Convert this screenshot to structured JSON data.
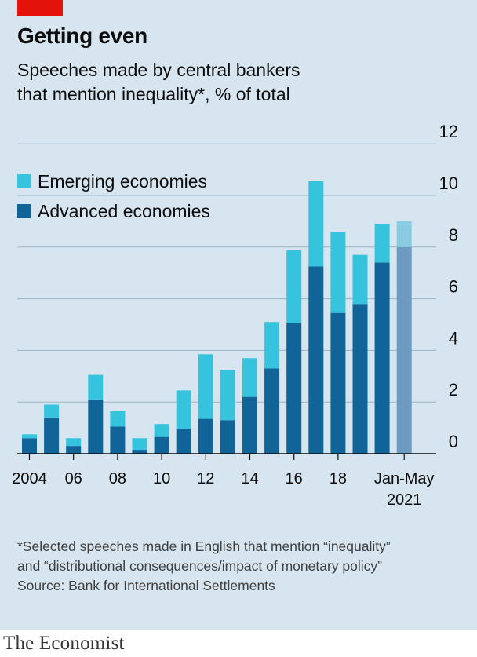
{
  "header": {
    "title": "Getting even",
    "subtitle_line1": "Speeches made by central bankers",
    "subtitle_line2": "that mention inequality*, % of total"
  },
  "colors": {
    "background": "#d6e5ef",
    "accent_red": "#e3120b",
    "emerging": "#36c3de",
    "advanced": "#106497",
    "partial_emerging": "#89cbe0",
    "partial_advanced": "#6d9ac0"
  },
  "chart_data": {
    "type": "bar",
    "stacked": true,
    "categories": [
      "2004",
      "2005",
      "2006",
      "2007",
      "2008",
      "2009",
      "2010",
      "2011",
      "2012",
      "2013",
      "2014",
      "2015",
      "2016",
      "2017",
      "2018",
      "2019",
      "2020",
      "Jan-May 2021"
    ],
    "series": [
      {
        "name": "Advanced economies",
        "values": [
          0.6,
          1.4,
          0.3,
          2.1,
          1.05,
          0.15,
          0.65,
          0.95,
          1.35,
          1.3,
          2.2,
          3.3,
          5.05,
          7.25,
          5.45,
          5.8,
          7.4,
          8.0
        ]
      },
      {
        "name": "Emerging economies",
        "values": [
          0.15,
          0.5,
          0.3,
          0.95,
          0.6,
          0.45,
          0.5,
          1.5,
          2.5,
          1.95,
          1.5,
          1.8,
          2.85,
          3.3,
          3.15,
          1.9,
          1.5,
          1.0
        ]
      }
    ],
    "x_tick_labels": [
      "2004",
      "06",
      "08",
      "10",
      "12",
      "14",
      "16",
      "18",
      "Jan-May",
      "2021"
    ],
    "y_ticks": [
      0,
      2,
      4,
      6,
      8,
      10,
      12
    ],
    "ylim": [
      0,
      12
    ],
    "axis_side": "right",
    "grid": true,
    "legend_position": "top-left",
    "partial_period_highlight": "Jan-May 2021"
  },
  "legend": [
    {
      "label": "Emerging economies"
    },
    {
      "label": "Advanced economies"
    }
  ],
  "footnote": {
    "line1": "*Selected speeches made in English that mention “inequality”",
    "line2": "and “distributional consequences/impact of monetary policy”",
    "source": "Source: Bank for International Settlements"
  },
  "brand": "The Economist"
}
